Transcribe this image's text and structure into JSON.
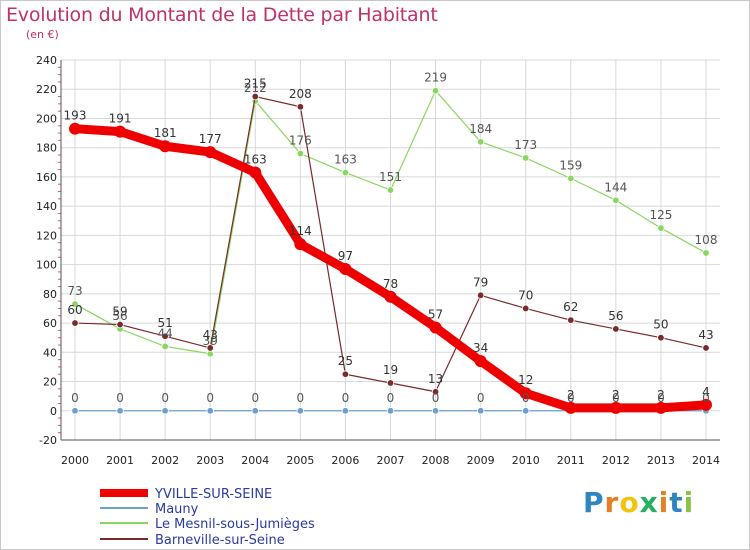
{
  "title": "Evolution du Montant de la Dette par Habitant",
  "unit": "(en €)",
  "logo": [
    "P",
    "r",
    "o",
    "x",
    "i",
    "t",
    "i"
  ],
  "logo_colors": [
    "#2e86c1",
    "#e67e22",
    "#f1c40f",
    "#27ae60",
    "#e67e22",
    "#2e86c1",
    "#8bc34a"
  ],
  "chart_data": {
    "type": "line",
    "title": "Evolution du Montant de la Dette par Habitant",
    "ylabel": "(en €)",
    "xlabel": "",
    "ylim": [
      -20,
      240
    ],
    "yticks": [
      -20,
      0,
      20,
      40,
      60,
      80,
      100,
      120,
      140,
      160,
      180,
      200,
      220,
      240
    ],
    "grid": true,
    "legend": "bottom-left",
    "x": [
      "2000",
      "2001",
      "2002",
      "2003",
      "2004",
      "2005",
      "2006",
      "2007",
      "2008",
      "2009",
      "2010",
      "2011",
      "2012",
      "2013",
      "2014"
    ],
    "series": [
      {
        "name": "YVILLE-SUR-SEINE",
        "color": "#ee0000",
        "values": [
          193,
          191,
          181,
          177,
          163,
          114,
          97,
          78,
          57,
          34,
          12,
          2,
          2,
          2,
          4
        ],
        "labels": [
          "193",
          "191",
          "181",
          "177",
          "163",
          "114",
          "97",
          "78",
          "57",
          "34",
          "12",
          "2",
          "2",
          "2",
          "4"
        ]
      },
      {
        "name": "Mauny",
        "color": "#6aa0d0",
        "values": [
          0,
          0,
          0,
          0,
          0,
          0,
          0,
          0,
          0,
          0,
          0,
          0,
          0,
          0,
          0
        ],
        "labels": [
          "0",
          "0",
          "0",
          "0",
          "0",
          "0",
          "0",
          "0",
          "0",
          "0",
          "0",
          "0",
          "0",
          "0",
          "0"
        ]
      },
      {
        "name": "Le Mesnil-sous-Jumièges",
        "color": "#88d860",
        "values": [
          73,
          56,
          44,
          39,
          212,
          176,
          163,
          151,
          219,
          184,
          173,
          159,
          144,
          125,
          108
        ],
        "labels": [
          "73",
          "56",
          "44",
          "39",
          "212",
          "176",
          "163",
          "151",
          "219",
          "184",
          "173",
          "159",
          "144",
          "125",
          "108"
        ]
      },
      {
        "name": "Barneville-sur-Seine",
        "color": "#7a2a2a",
        "values": [
          60,
          59,
          51,
          43,
          215,
          208,
          25,
          19,
          13,
          79,
          70,
          62,
          56,
          50,
          43
        ],
        "labels": [
          "60",
          "59",
          "51",
          "43",
          "215",
          "208",
          "25",
          "19",
          "13",
          "79",
          "70",
          "62",
          "56",
          "50",
          "43"
        ]
      }
    ]
  }
}
